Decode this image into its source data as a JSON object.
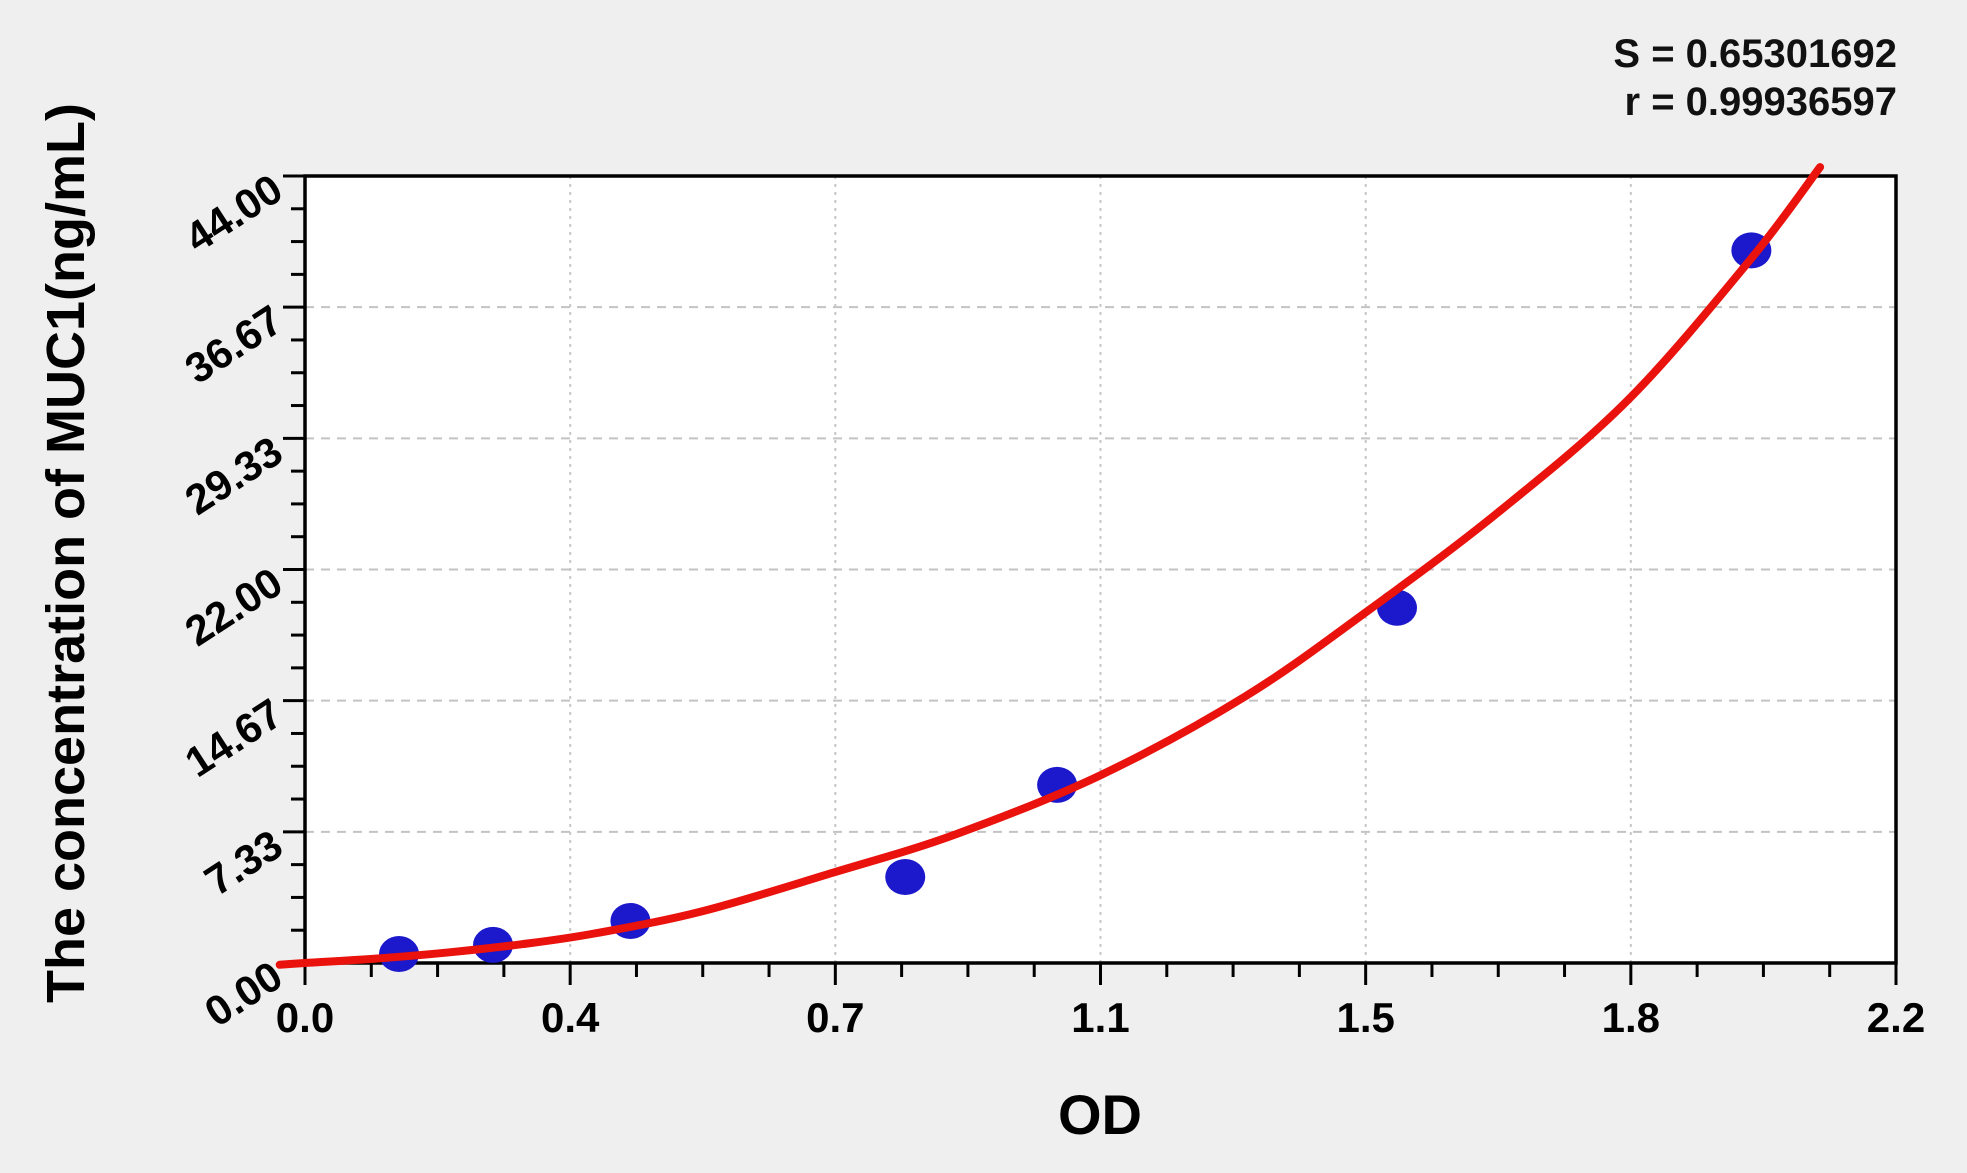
{
  "page": {
    "background_color": "#efefef",
    "plot_background_color": "#ffffff"
  },
  "stats": {
    "s_label": "S = 0.65301692",
    "r_label": "r = 0.99936597"
  },
  "chart_data": {
    "type": "scatter",
    "title": "",
    "xlabel": "OD",
    "ylabel": "The concentration of MUC1(ng/mL)",
    "xlim": [
      0,
      2.2
    ],
    "ylim": [
      0,
      44
    ],
    "grid": "dashed gray lines at interior major ticks, on",
    "legend_position": "none",
    "x_major_ticks": [
      0,
      0.3667,
      0.7333,
      1.1,
      1.4667,
      1.8333,
      2.2
    ],
    "x_tick_labels": [
      "0.0",
      "0.4",
      "0.7",
      "1.1",
      "1.5",
      "1.8",
      "2.2"
    ],
    "y_major_ticks": [
      0,
      7.333,
      14.667,
      22,
      29.333,
      36.667,
      44
    ],
    "y_tick_labels": [
      "0.00",
      "7.33",
      "14.67",
      "22.00",
      "29.33",
      "36.67",
      "44.00"
    ],
    "minor_tick_divisions": 4,
    "fit_statistics": {
      "S": "0.65301692",
      "r": "0.99936597"
    },
    "series": [
      {
        "name": "standard points",
        "type": "scatter",
        "color": "#1c18cb",
        "x": [
          0.13,
          0.26,
          0.45,
          0.83,
          1.04,
          1.51,
          2.0
        ],
        "y": [
          0.5,
          1.01,
          2.35,
          4.81,
          9.96,
          19.86,
          39.84
        ]
      },
      {
        "name": "fitted curve",
        "type": "line",
        "color": "#ea120c",
        "points": [
          [
            -0.035,
            -0.1
          ],
          [
            0.0,
            0.0
          ],
          [
            0.1,
            0.25
          ],
          [
            0.2,
            0.6
          ],
          [
            0.3,
            1.05
          ],
          [
            0.4,
            1.65
          ],
          [
            0.55,
            2.9
          ],
          [
            0.73,
            5.05
          ],
          [
            0.9,
            7.2
          ],
          [
            1.1,
            10.5
          ],
          [
            1.3,
            14.9
          ],
          [
            1.47,
            19.7
          ],
          [
            1.65,
            25.2
          ],
          [
            1.83,
            31.5
          ],
          [
            2.0,
            39.4
          ],
          [
            2.095,
            44.5
          ]
        ]
      }
    ]
  }
}
